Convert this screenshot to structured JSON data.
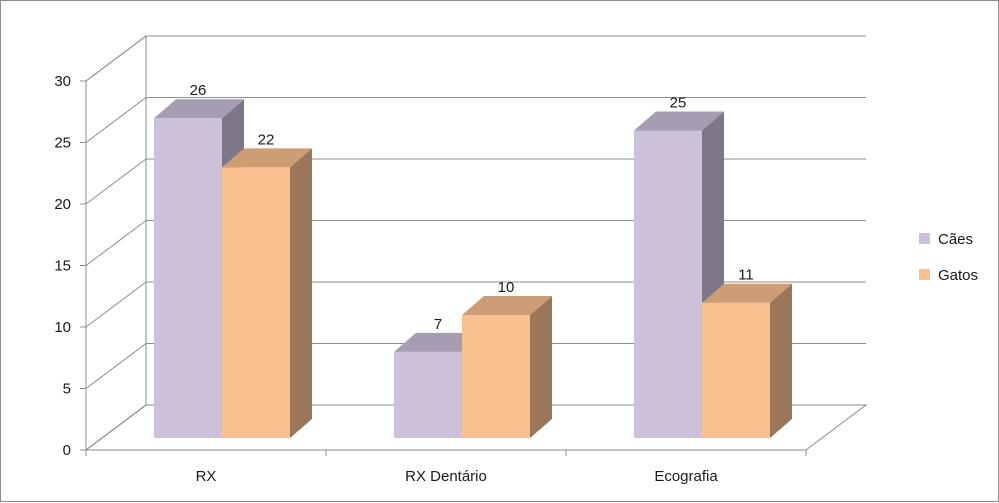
{
  "chart_data": {
    "type": "bar",
    "style": "3d-clustered-column",
    "categories": [
      "RX",
      "RX Dentário",
      "Ecografia"
    ],
    "series": [
      {
        "name": "Cães",
        "values": [
          26,
          7,
          25
        ],
        "color": "#ccc0da"
      },
      {
        "name": "Gatos",
        "values": [
          22,
          10,
          11
        ],
        "color": "#fac090"
      }
    ],
    "yticks": [
      "0",
      "5",
      "10",
      "15",
      "20",
      "25",
      "30"
    ],
    "ylim": [
      0,
      30
    ],
    "grid": true,
    "legend": "right",
    "data_labels": true
  }
}
